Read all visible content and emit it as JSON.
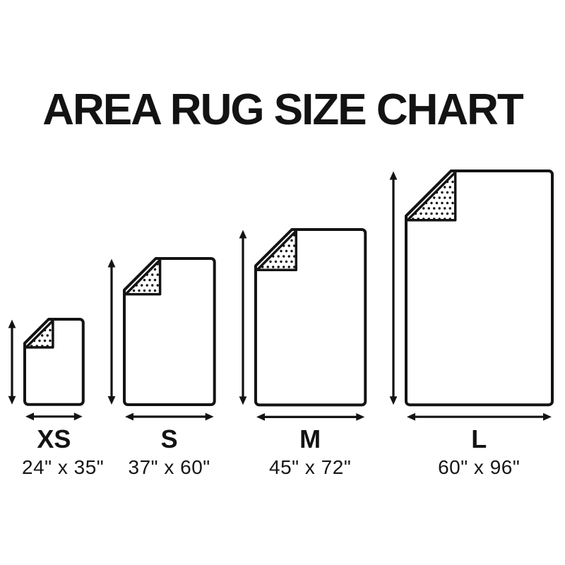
{
  "title": "AREA RUG SIZE CHART",
  "colors": {
    "ink": "#131313",
    "background": "#ffffff"
  },
  "chart_data": {
    "type": "table",
    "title": "AREA RUG SIZE CHART",
    "columns": [
      "size_code",
      "dimensions_inches"
    ],
    "rows": [
      [
        "XS",
        "24\" x 35\""
      ],
      [
        "S",
        "37\" x 60\""
      ],
      [
        "M",
        "45\" x 72\""
      ],
      [
        "L",
        "60\" x 96\""
      ]
    ]
  },
  "rugs": [
    {
      "id": "xs",
      "label": "XS",
      "dimensions": "24\" x 35\"",
      "width_in": 24,
      "height_in": 35
    },
    {
      "id": "s",
      "label": "S",
      "dimensions": "37\" x 60\"",
      "width_in": 37,
      "height_in": 60
    },
    {
      "id": "m",
      "label": "M",
      "dimensions": "45\" x 72\"",
      "width_in": 45,
      "height_in": 72
    },
    {
      "id": "l",
      "label": "L",
      "dimensions": "60\" x 96\"",
      "width_in": 60,
      "height_in": 96
    }
  ]
}
